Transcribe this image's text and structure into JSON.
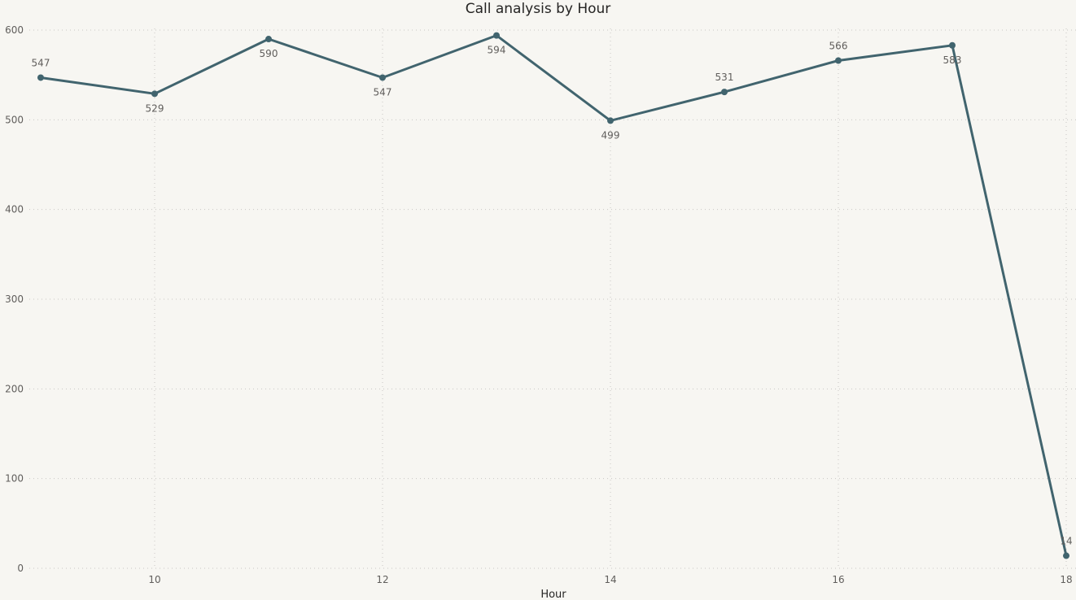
{
  "chart_data": {
    "type": "line",
    "title": "Call analysis by Hour",
    "xlabel": "Hour",
    "ylabel": "",
    "x": [
      9,
      10,
      11,
      12,
      13,
      14,
      15,
      16,
      17,
      18
    ],
    "series": [
      {
        "values": [
          547,
          529,
          590,
          547,
          594,
          499,
          531,
          566,
          583,
          14
        ]
      }
    ],
    "data_labels": [
      "547",
      "529",
      "590",
      "547",
      "594",
      "499",
      "531",
      "566",
      "583",
      "14"
    ],
    "xlim": [
      9,
      18
    ],
    "ylim": [
      0,
      600
    ],
    "x_ticks": [
      10,
      12,
      14,
      16,
      18
    ],
    "y_ticks": [
      0,
      100,
      200,
      300,
      400,
      500,
      600
    ],
    "grid": true,
    "colors": {
      "line": "#41646e",
      "background": "#f7f6f2",
      "grid": "#c8c6c4",
      "text": "#605e5c"
    }
  }
}
